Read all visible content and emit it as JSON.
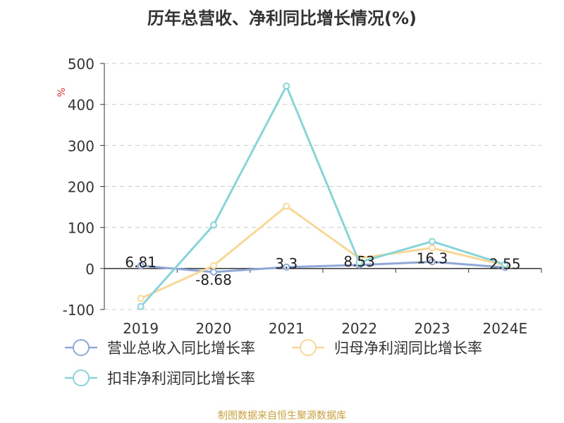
{
  "chart_data": {
    "type": "line",
    "title": "历年总营收、净利同比增长情况(%)",
    "ylabel": "%",
    "ylim": [
      -100,
      500
    ],
    "yticks": [
      -100,
      0,
      100,
      200,
      300,
      400,
      500
    ],
    "grid": true,
    "legend_position": "bottom",
    "categories": [
      "2019",
      "2020",
      "2021",
      "2022",
      "2023",
      "2024E"
    ],
    "series": [
      {
        "name": "营业总收入同比增长率",
        "color": "#8fa8d8",
        "values": [
          6.81,
          -8.68,
          3.3,
          8.53,
          16.3,
          2.55
        ],
        "labels": [
          "6.81",
          "-8.68",
          "3.3",
          "8.53",
          "16.3",
          "2.55"
        ]
      },
      {
        "name": "归母净利润同比增长率",
        "color": "#f8d898",
        "values": [
          -73,
          7,
          152,
          25,
          50,
          8
        ]
      },
      {
        "name": "扣非净利润同比增长率",
        "color": "#88d4d8",
        "values": [
          -93,
          106,
          445,
          15,
          66,
          10
        ]
      }
    ]
  },
  "source": "制图数据来自恒生聚源数据库"
}
